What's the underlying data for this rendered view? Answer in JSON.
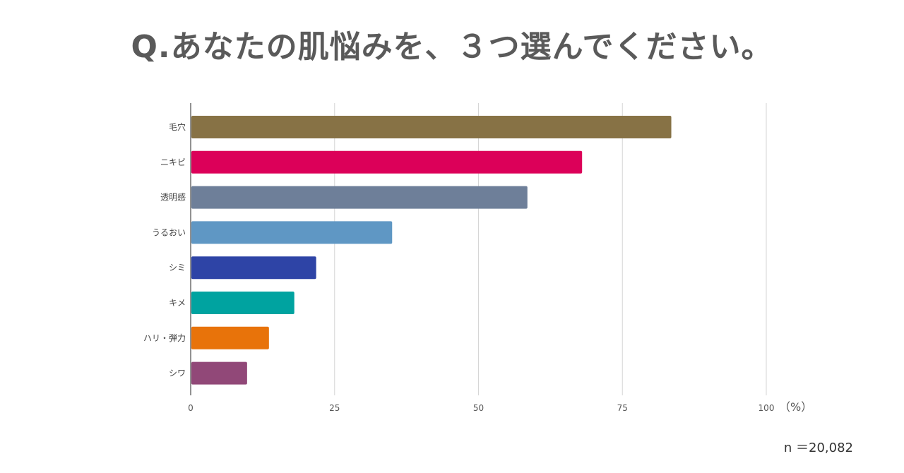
{
  "title": "Q.あなたの肌悩みを、３つ選んでください。",
  "sample_size": "n ＝20,082",
  "chart_data": {
    "type": "bar",
    "orientation": "horizontal",
    "title": "Q.あなたの肌悩みを、３つ選んでください。",
    "categories": [
      "毛穴",
      "ニキビ",
      "透明感",
      "うるおい",
      "シミ",
      "キメ",
      "ハリ・弾力",
      "シワ"
    ],
    "values": [
      83.5,
      68,
      58.5,
      35,
      21.8,
      18,
      13.6,
      9.8
    ],
    "colors": [
      "#877245",
      "#dc0059",
      "#6e7f99",
      "#5f97c4",
      "#2e44a6",
      "#00a3a0",
      "#e8730a",
      "#914878"
    ],
    "xticks": [
      "0",
      "25",
      "50",
      "75",
      "100"
    ],
    "xunit": "（%）",
    "xlim": [
      0,
      100
    ],
    "grid": true
  }
}
